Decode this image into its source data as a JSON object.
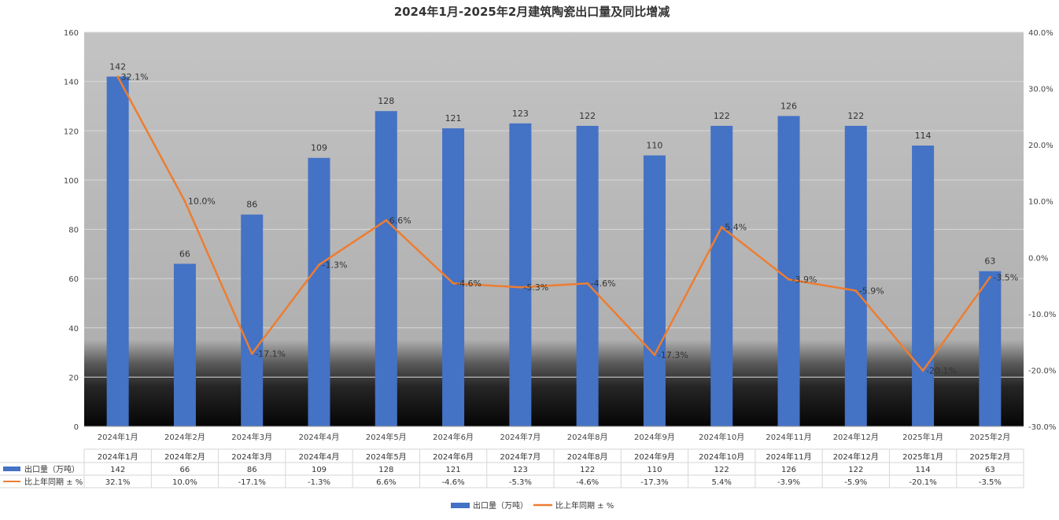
{
  "chart_data": {
    "type": "bar",
    "title": "2024年1月-2025年2月建筑陶瓷出口量及同比增减",
    "categories": [
      "2024年1月",
      "2024年2月",
      "2024年3月",
      "2024年4月",
      "2024年5月",
      "2024年6月",
      "2024年7月",
      "2024年8月",
      "2024年9月",
      "2024年10月",
      "2024年11月",
      "2024年12月",
      "2025年1月",
      "2025年2月"
    ],
    "series": [
      {
        "name": "出口量（万吨）",
        "type": "bar",
        "axis": "left",
        "color": "#4472C4",
        "values": [
          142,
          66,
          86,
          109,
          128,
          121,
          123,
          122,
          110,
          122,
          126,
          122,
          114,
          63
        ]
      },
      {
        "name": "比上年同期 ± %",
        "type": "line",
        "axis": "right",
        "color": "#ED7D31",
        "values": [
          32.1,
          10.0,
          -17.1,
          -1.3,
          6.6,
          -4.6,
          -5.3,
          -4.6,
          -17.3,
          5.4,
          -3.9,
          -5.9,
          -20.1,
          -3.5
        ]
      }
    ],
    "data_labels": {
      "bars": [
        "142",
        "66",
        "86",
        "109",
        "128",
        "121",
        "123",
        "122",
        "110",
        "122",
        "126",
        "122",
        "114",
        "63"
      ],
      "line": [
        "32.1%",
        "10.0%",
        "-17.1%",
        "-1.3%",
        "6.6%",
        "-4.6%",
        "-5.3%",
        "-4.6%",
        "-17.3%",
        "5.4%",
        "-3.9%",
        "-5.9%",
        "-20.1%",
        "-3.5%"
      ]
    },
    "y_left": {
      "ylim": [
        0,
        160
      ],
      "ticks": [
        "0",
        "20",
        "40",
        "60",
        "80",
        "100",
        "120",
        "140",
        "160"
      ]
    },
    "y_right": {
      "ylim": [
        -30,
        40
      ],
      "ticks": [
        "-30.0%",
        "-20.0%",
        "-10.0%",
        "0.0%",
        "10.0%",
        "20.0%",
        "30.0%",
        "40.0%"
      ]
    },
    "grid": true,
    "legend_position": "bottom",
    "data_table": {
      "rows": [
        {
          "label": "出口量（万吨）",
          "cells": [
            "142",
            "66",
            "86",
            "109",
            "128",
            "121",
            "123",
            "122",
            "110",
            "122",
            "126",
            "122",
            "114",
            "63"
          ]
        },
        {
          "label": "比上年同期 ± %",
          "cells": [
            "32.1%",
            "10.0%",
            "-17.1%",
            "-1.3%",
            "6.6%",
            "-4.6%",
            "-5.3%",
            "-4.6%",
            "-17.3%",
            "5.4%",
            "-3.9%",
            "-5.9%",
            "-20.1%",
            "-3.5%"
          ]
        }
      ]
    },
    "colors": {
      "bar": "#4472C4",
      "line": "#ED7D31"
    }
  }
}
